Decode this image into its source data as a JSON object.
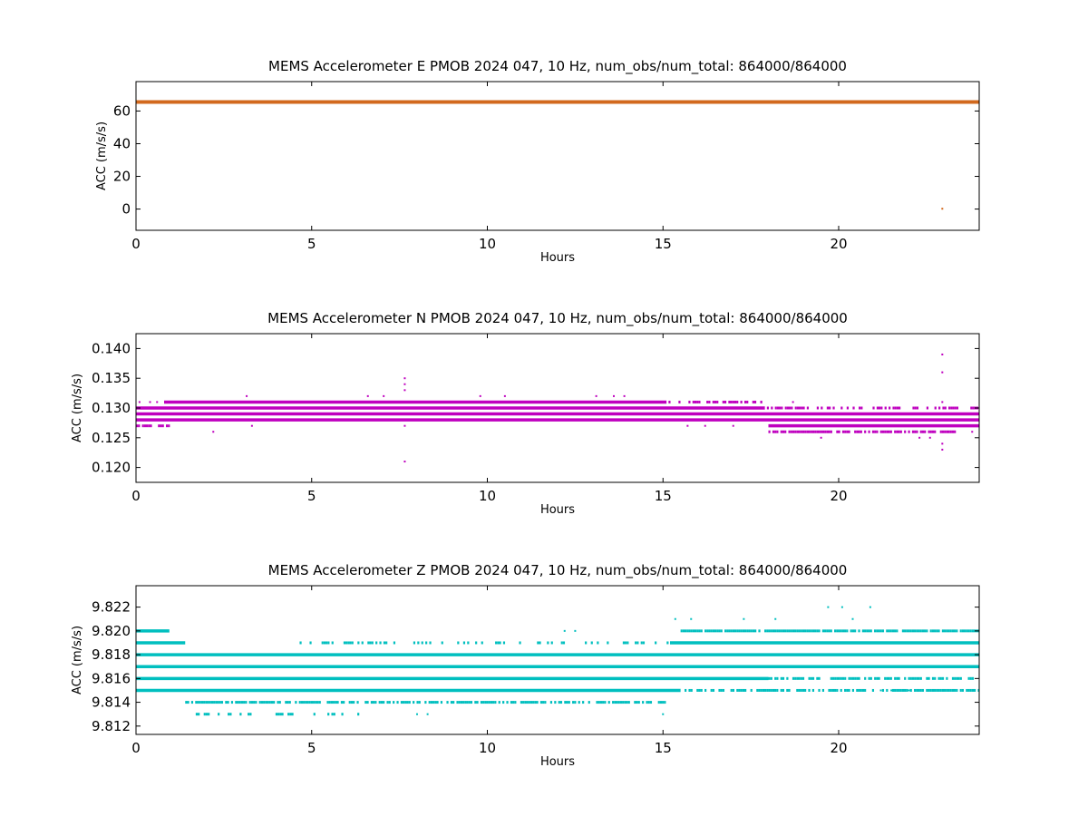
{
  "chart_data": [
    {
      "type": "scatter",
      "title": "MEMS Accelerometer E PMOB 2024 047, 10 Hz, num_obs/num_total: 864000/864000",
      "xlabel": "Hours",
      "ylabel": "ACC (m/s/s)",
      "xlim": [
        0,
        24
      ],
      "ylim": [
        -13,
        78
      ],
      "xticks": [
        0,
        5,
        10,
        15,
        20
      ],
      "xtick_labels": [
        "0",
        "5",
        "10",
        "15",
        "20"
      ],
      "yticks": [
        0,
        20,
        40,
        60
      ],
      "ytick_labels": [
        "0",
        "20",
        "40",
        "60"
      ],
      "color": "#d2691e",
      "grid": false,
      "bands": [
        {
          "y": 65.5,
          "x_start": 0,
          "x_end": 24,
          "density": 1.0
        }
      ],
      "points": [
        {
          "x": 22.95,
          "y": 0.2
        }
      ]
    },
    {
      "type": "scatter",
      "title": "MEMS Accelerometer N PMOB 2024 047, 10 Hz, num_obs/num_total: 864000/864000",
      "xlabel": "Hours",
      "ylabel": "ACC (m/s/s)",
      "xlim": [
        0,
        24
      ],
      "ylim": [
        0.1175,
        0.1425
      ],
      "xticks": [
        0,
        5,
        10,
        15,
        20
      ],
      "xtick_labels": [
        "0",
        "5",
        "10",
        "15",
        "20"
      ],
      "yticks": [
        0.12,
        0.125,
        0.13,
        0.135,
        0.14
      ],
      "ytick_labels": [
        "0.120",
        "0.125",
        "0.130",
        "0.135",
        "0.140"
      ],
      "color": "#bf00bf",
      "grid": false,
      "bands": [
        {
          "y": 0.131,
          "x_start": 0.8,
          "x_end": 15.1,
          "density": 1.0
        },
        {
          "y": 0.131,
          "x_start": 15.1,
          "x_end": 17.8,
          "density": 0.6
        },
        {
          "y": 0.13,
          "x_start": 0,
          "x_end": 17.9,
          "density": 1.0
        },
        {
          "y": 0.13,
          "x_start": 17.9,
          "x_end": 24,
          "density": 0.5
        },
        {
          "y": 0.129,
          "x_start": 0,
          "x_end": 24,
          "density": 1.0
        },
        {
          "y": 0.128,
          "x_start": 0,
          "x_end": 24,
          "density": 1.0
        },
        {
          "y": 0.127,
          "x_start": 0,
          "x_end": 1.0,
          "density": 0.5
        },
        {
          "y": 0.127,
          "x_start": 18.0,
          "x_end": 24,
          "density": 1.0
        },
        {
          "y": 0.126,
          "x_start": 18.0,
          "x_end": 23.3,
          "density": 0.8
        }
      ],
      "points": [
        {
          "x": 0.1,
          "y": 0.131
        },
        {
          "x": 0.4,
          "y": 0.131
        },
        {
          "x": 0.6,
          "y": 0.131
        },
        {
          "x": 3.15,
          "y": 0.132
        },
        {
          "x": 6.6,
          "y": 0.132
        },
        {
          "x": 7.05,
          "y": 0.132
        },
        {
          "x": 7.65,
          "y": 0.135
        },
        {
          "x": 7.65,
          "y": 0.134
        },
        {
          "x": 7.65,
          "y": 0.133
        },
        {
          "x": 7.65,
          "y": 0.127
        },
        {
          "x": 7.65,
          "y": 0.121
        },
        {
          "x": 9.8,
          "y": 0.132
        },
        {
          "x": 10.5,
          "y": 0.132
        },
        {
          "x": 13.1,
          "y": 0.132
        },
        {
          "x": 13.6,
          "y": 0.132
        },
        {
          "x": 13.9,
          "y": 0.132
        },
        {
          "x": 2.2,
          "y": 0.126
        },
        {
          "x": 3.3,
          "y": 0.127
        },
        {
          "x": 15.7,
          "y": 0.127
        },
        {
          "x": 16.2,
          "y": 0.127
        },
        {
          "x": 17.0,
          "y": 0.127
        },
        {
          "x": 19.5,
          "y": 0.125
        },
        {
          "x": 22.3,
          "y": 0.125
        },
        {
          "x": 22.6,
          "y": 0.125
        },
        {
          "x": 22.95,
          "y": 0.139
        },
        {
          "x": 22.95,
          "y": 0.136
        },
        {
          "x": 22.95,
          "y": 0.131
        },
        {
          "x": 22.95,
          "y": 0.124
        },
        {
          "x": 22.95,
          "y": 0.123
        },
        {
          "x": 23.8,
          "y": 0.126
        },
        {
          "x": 18.7,
          "y": 0.131
        }
      ]
    },
    {
      "type": "scatter",
      "title": "MEMS Accelerometer Z PMOB 2024 047, 10 Hz, num_obs/num_total: 864000/864000",
      "xlabel": "Hours",
      "ylabel": "ACC (m/s/s)",
      "xlim": [
        0,
        24
      ],
      "ylim": [
        9.8113,
        9.8238
      ],
      "xticks": [
        0,
        5,
        10,
        15,
        20
      ],
      "xtick_labels": [
        "0",
        "5",
        "10",
        "15",
        "20"
      ],
      "yticks": [
        9.812,
        9.814,
        9.816,
        9.818,
        9.82,
        9.822
      ],
      "ytick_labels": [
        "9.812",
        "9.814",
        "9.816",
        "9.818",
        "9.820",
        "9.822"
      ],
      "color": "#00bfbf",
      "grid": false,
      "bands": [
        {
          "y": 9.813,
          "x_start": 1.7,
          "x_end": 6.4,
          "density": 0.35
        },
        {
          "y": 9.814,
          "x_start": 1.4,
          "x_end": 15.1,
          "density": 0.7
        },
        {
          "y": 9.815,
          "x_start": 0,
          "x_end": 15.5,
          "density": 1.0
        },
        {
          "y": 9.815,
          "x_start": 15.5,
          "x_end": 24,
          "density": 0.7
        },
        {
          "y": 9.816,
          "x_start": 0,
          "x_end": 18.0,
          "density": 1.0
        },
        {
          "y": 9.816,
          "x_start": 18.0,
          "x_end": 24,
          "density": 0.6
        },
        {
          "y": 9.817,
          "x_start": 0,
          "x_end": 24,
          "density": 1.0
        },
        {
          "y": 9.818,
          "x_start": 0,
          "x_end": 24,
          "density": 1.0
        },
        {
          "y": 9.819,
          "x_start": 0,
          "x_end": 1.4,
          "density": 1.0
        },
        {
          "y": 9.819,
          "x_start": 4.6,
          "x_end": 15.2,
          "density": 0.35
        },
        {
          "y": 9.819,
          "x_start": 15.2,
          "x_end": 24,
          "density": 1.0
        },
        {
          "y": 9.82,
          "x_start": 0,
          "x_end": 0.95,
          "density": 1.0
        },
        {
          "y": 9.82,
          "x_start": 15.5,
          "x_end": 24,
          "density": 0.9
        }
      ],
      "points": [
        {
          "x": 12.2,
          "y": 9.82
        },
        {
          "x": 12.5,
          "y": 9.82
        },
        {
          "x": 15.35,
          "y": 9.821
        },
        {
          "x": 15.8,
          "y": 9.821
        },
        {
          "x": 17.3,
          "y": 9.821
        },
        {
          "x": 18.2,
          "y": 9.821
        },
        {
          "x": 20.4,
          "y": 9.821
        },
        {
          "x": 19.7,
          "y": 9.822
        },
        {
          "x": 20.1,
          "y": 9.822
        },
        {
          "x": 20.9,
          "y": 9.822
        },
        {
          "x": 8.0,
          "y": 9.813
        },
        {
          "x": 8.3,
          "y": 9.813
        },
        {
          "x": 15.0,
          "y": 9.813
        },
        {
          "x": 21.2,
          "y": 9.815
        },
        {
          "x": 21.5,
          "y": 9.815
        },
        {
          "x": 22.0,
          "y": 9.815
        }
      ]
    }
  ]
}
